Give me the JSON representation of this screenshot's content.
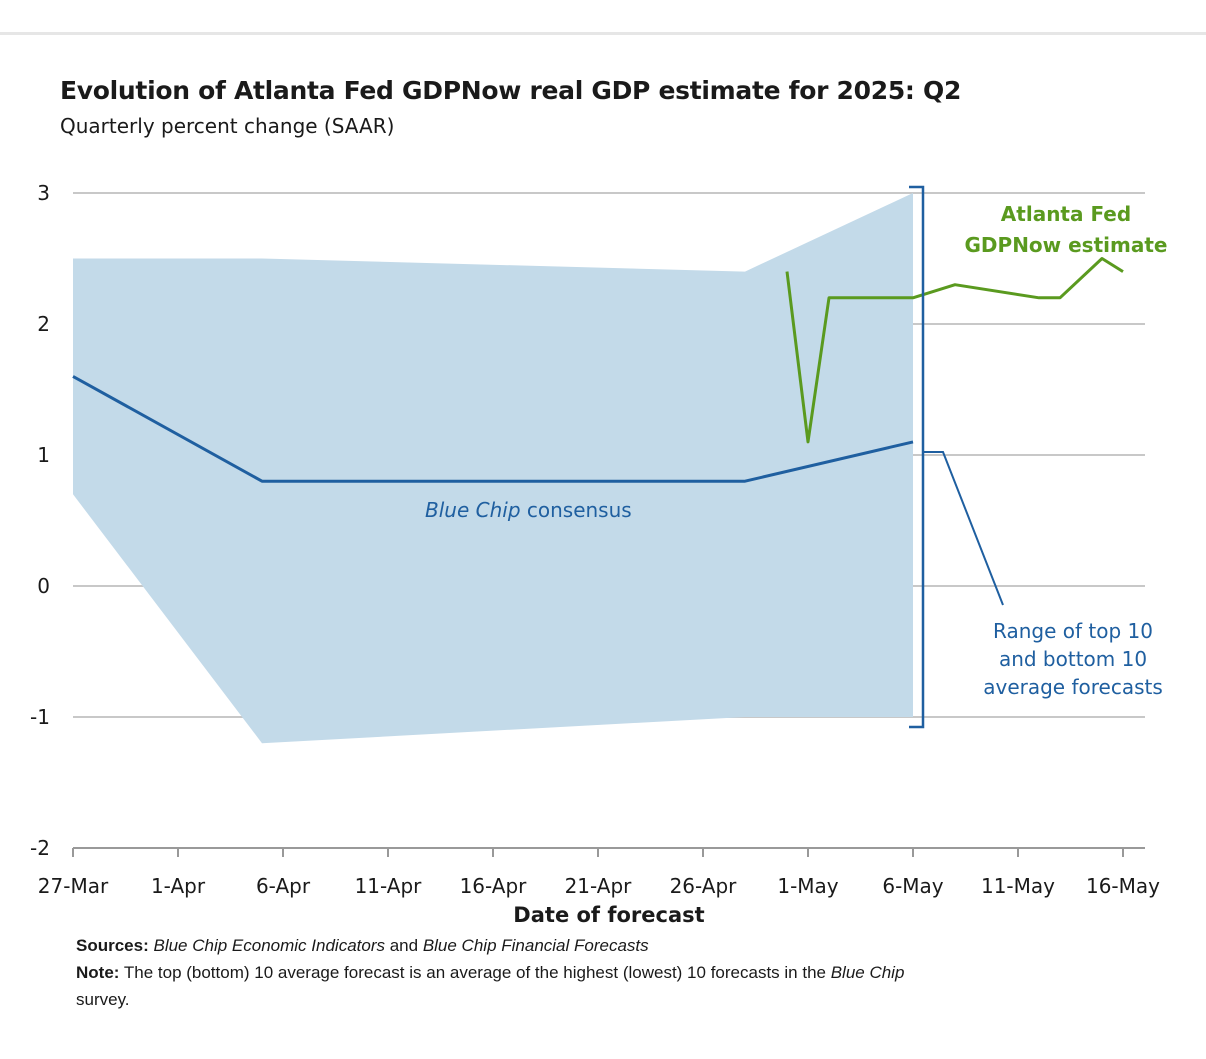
{
  "title": "Evolution of Atlanta Fed GDPNow real GDP estimate for 2025: Q2",
  "subtitle": "Quarterly percent change (SAAR)",
  "chart_data": {
    "type": "line",
    "title": "Evolution of Atlanta Fed GDPNow real GDP estimate for 2025: Q2",
    "subtitle": "Quarterly percent change (SAAR)",
    "xlabel": "Date of forecast",
    "ylabel": "",
    "x_tick_labels": [
      "27-Mar",
      "1-Apr",
      "6-Apr",
      "11-Apr",
      "16-Apr",
      "21-Apr",
      "26-Apr",
      "1-May",
      "6-May",
      "11-May",
      "16-May"
    ],
    "y_tick_labels": [
      "3",
      "2",
      "1",
      "0",
      "-1",
      "-2"
    ],
    "ylim": [
      -2,
      3
    ],
    "grid": true,
    "series": [
      {
        "name": "Atlanta Fed GDPNow estimate",
        "color": "#5a9a1f",
        "points": [
          {
            "date": "2025-04-30",
            "value": 2.4
          },
          {
            "date": "2025-05-01",
            "value": 1.1
          },
          {
            "date": "2025-05-02",
            "value": 2.2
          },
          {
            "date": "2025-05-06",
            "value": 2.2
          },
          {
            "date": "2025-05-08",
            "value": 2.3
          },
          {
            "date": "2025-05-12",
            "value": 2.2
          },
          {
            "date": "2025-05-13",
            "value": 2.2
          },
          {
            "date": "2025-05-15",
            "value": 2.5
          },
          {
            "date": "2025-05-16",
            "value": 2.4
          }
        ]
      },
      {
        "name_italic": "Blue Chip",
        "name": "consensus",
        "color": "#1f5fa0",
        "points": [
          {
            "date": "2025-03-27",
            "value": 1.6
          },
          {
            "date": "2025-04-05",
            "value": 0.8
          },
          {
            "date": "2025-04-28",
            "value": 0.8
          },
          {
            "date": "2025-05-06",
            "value": 1.1
          }
        ]
      }
    ],
    "band": {
      "color": "#c3dae9",
      "upper": [
        {
          "date": "2025-03-27",
          "value": 2.5
        },
        {
          "date": "2025-04-05",
          "value": 2.5
        },
        {
          "date": "2025-04-28",
          "value": 2.4
        },
        {
          "date": "2025-05-06",
          "value": 3.0
        }
      ],
      "lower": [
        {
          "date": "2025-03-27",
          "value": 0.7
        },
        {
          "date": "2025-04-05",
          "value": -1.2
        },
        {
          "date": "2025-04-28",
          "value": -1.0
        },
        {
          "date": "2025-05-06",
          "value": -1.0
        }
      ]
    },
    "annotations": {
      "gdpnow_line1": "Atlanta Fed",
      "gdpnow_line2": "GDPNow estimate",
      "consensus_italic": "Blue Chip",
      "consensus_rest": " consensus",
      "range_line1": "Range of top 10",
      "range_line2": "and bottom 10",
      "range_line3": "average forecasts"
    }
  },
  "footer": {
    "sources_label": "Sources:",
    "sources_italic_1": "Blue Chip Economic Indicators",
    "sources_and": " and ",
    "sources_italic_2": "Blue Chip Financial Forecasts",
    "note_label": "Note:",
    "note_text": " The top (bottom) 10 average forecast is an average of the highest (lowest) 10 forecasts in the ",
    "note_italic": "Blue Chip",
    "note_line2": "survey."
  }
}
